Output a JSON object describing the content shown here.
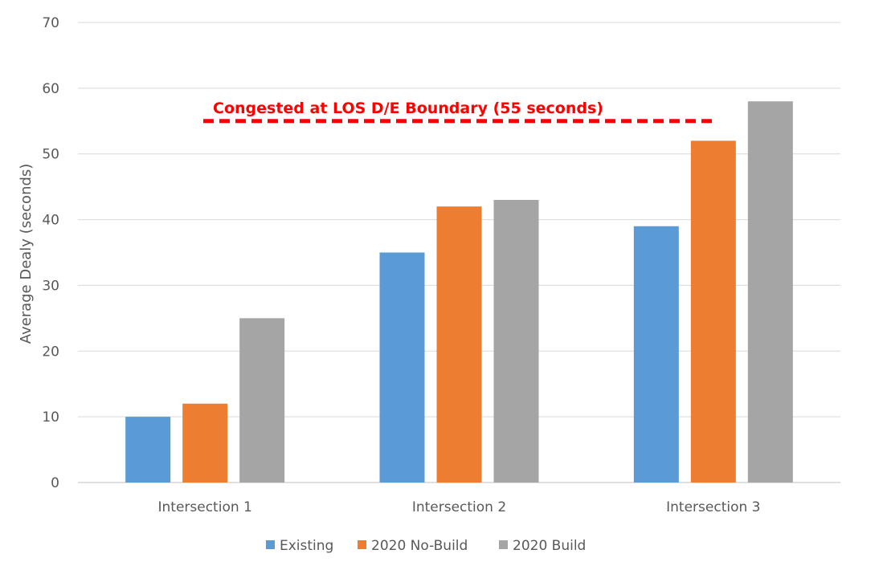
{
  "chart_data": {
    "type": "bar",
    "title": "",
    "xlabel": "",
    "ylabel": "Average Dealy (seconds)",
    "ylim": [
      0,
      70
    ],
    "yticks": [
      0,
      10,
      20,
      30,
      40,
      50,
      60,
      70
    ],
    "grid": true,
    "legend_position": "bottom",
    "categories": [
      "Intersection 1",
      "Intersection 2",
      "Intersection 3"
    ],
    "series": [
      {
        "name": "Existing",
        "values": [
          10,
          35,
          39
        ],
        "color": "#5B9BD5"
      },
      {
        "name": "2020 No-Build",
        "values": [
          12,
          42,
          52
        ],
        "color": "#ED7D31"
      },
      {
        "name": "2020 Build",
        "values": [
          25,
          43,
          58
        ],
        "color": "#A5A5A5"
      }
    ],
    "annotation": {
      "text": "Congested at LOS D/E Boundary (55 seconds)",
      "value": 55,
      "color": "#FF0000",
      "style": "dashed"
    }
  }
}
